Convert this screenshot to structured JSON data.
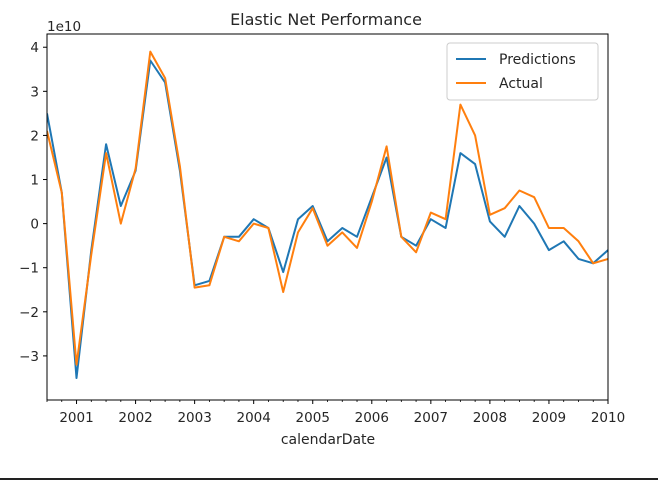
{
  "chart_data": {
    "type": "line",
    "title": "Elastic Net Performance",
    "xlabel": "calendarDate",
    "ylabel": "",
    "offset_text": "1e10",
    "xlim": [
      2000.5,
      2010.0
    ],
    "ylim": [
      -4.0,
      4.3
    ],
    "x_ticks": [
      2001,
      2002,
      2003,
      2004,
      2005,
      2006,
      2007,
      2008,
      2009,
      2010
    ],
    "x_tick_labels": [
      "2001",
      "2002",
      "2003",
      "2004",
      "2005",
      "2006",
      "2007",
      "2008",
      "2009",
      "2010"
    ],
    "y_ticks": [
      -3,
      -2,
      -1,
      0,
      1,
      2,
      3,
      4
    ],
    "y_tick_labels": [
      "−3",
      "−2",
      "−1",
      "0",
      "1",
      "2",
      "3",
      "4"
    ],
    "legend": {
      "position": "top-right"
    },
    "x": [
      2000.5,
      2000.75,
      2001.0,
      2001.25,
      2001.5,
      2001.75,
      2002.0,
      2002.25,
      2002.5,
      2002.75,
      2003.0,
      2003.25,
      2003.5,
      2003.75,
      2004.0,
      2004.25,
      2004.5,
      2004.75,
      2005.0,
      2005.25,
      2005.5,
      2005.75,
      2006.0,
      2006.25,
      2006.5,
      2006.75,
      2007.0,
      2007.25,
      2007.5,
      2007.75,
      2008.0,
      2008.25,
      2008.5,
      2008.75,
      2009.0,
      2009.25,
      2009.5,
      2009.75,
      2010.0
    ],
    "series": [
      {
        "name": "Predictions",
        "color": "#1f77b4",
        "values": [
          2.5,
          0.7,
          -3.5,
          -0.6,
          1.8,
          0.4,
          1.2,
          3.7,
          3.2,
          1.2,
          -1.4,
          -1.3,
          -0.3,
          -0.3,
          0.1,
          -0.1,
          -1.1,
          0.1,
          0.4,
          -0.4,
          -0.1,
          -0.3,
          0.6,
          1.5,
          -0.3,
          -0.5,
          0.1,
          -0.1,
          1.6,
          1.35,
          0.05,
          -0.3,
          0.4,
          0.0,
          -0.6,
          -0.4,
          -0.8,
          -0.9,
          -0.6
        ]
      },
      {
        "name": "Actual",
        "color": "#ff7f0e",
        "values": [
          2.1,
          0.7,
          -3.2,
          -0.7,
          1.6,
          0.0,
          1.25,
          3.9,
          3.3,
          1.3,
          -1.45,
          -1.4,
          -0.3,
          -0.4,
          0.0,
          -0.1,
          -1.55,
          -0.2,
          0.35,
          -0.5,
          -0.2,
          -0.55,
          0.5,
          1.75,
          -0.3,
          -0.65,
          0.25,
          0.1,
          2.7,
          2.0,
          0.2,
          0.35,
          0.75,
          0.6,
          -0.1,
          -0.1,
          -0.4,
          -0.9,
          -0.8
        ]
      }
    ]
  }
}
